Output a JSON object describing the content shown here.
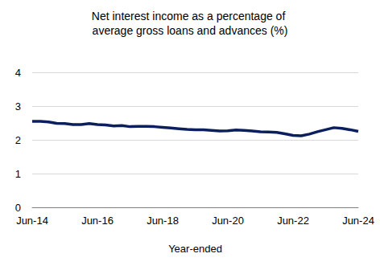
{
  "chart_data": {
    "type": "line",
    "title": "Net interest income as a percentage of average gross loans and advances (%)",
    "x_label": "Year-ended",
    "categories": [
      "Jun-14",
      null,
      null,
      null,
      null,
      null,
      null,
      null,
      "Jun-16",
      null,
      null,
      null,
      null,
      null,
      null,
      null,
      "Jun-18",
      null,
      null,
      null,
      null,
      null,
      null,
      null,
      "Jun-20",
      null,
      null,
      null,
      null,
      null,
      null,
      null,
      "Jun-22",
      null,
      null,
      null,
      null,
      null,
      null,
      null,
      "Jun-24"
    ],
    "values": [
      2.55,
      2.55,
      2.53,
      2.49,
      2.48,
      2.45,
      2.45,
      2.48,
      2.45,
      2.44,
      2.41,
      2.42,
      2.39,
      2.4,
      2.4,
      2.39,
      2.37,
      2.35,
      2.33,
      2.31,
      2.3,
      2.3,
      2.28,
      2.26,
      2.27,
      2.29,
      2.28,
      2.26,
      2.24,
      2.23,
      2.22,
      2.18,
      2.13,
      2.12,
      2.17,
      2.24,
      2.3,
      2.36,
      2.34,
      2.3,
      2.25
    ],
    "color": "#0b1f5e",
    "ylim": [
      0,
      4
    ],
    "yticks": [
      0,
      1,
      2,
      3,
      4
    ],
    "grid": true
  }
}
